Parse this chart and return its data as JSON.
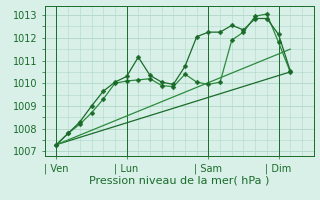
{
  "background_color": "#d8f0e8",
  "grid_color": "#b0d8c8",
  "line_color_dark": "#1a6b2a",
  "line_color_mid": "#2d8a3e",
  "line_color_light": "#4aaa5a",
  "ylim": [
    1006.8,
    1013.4
  ],
  "yticks": [
    1007,
    1008,
    1009,
    1010,
    1011,
    1012,
    1013
  ],
  "xlabel": "Pression niveau de la mer( hPa )",
  "xlabel_fontsize": 8,
  "tick_fontsize": 7,
  "xtick_labels": [
    "| Ven",
    "| Lun",
    "| Sam",
    "| Dim"
  ],
  "xtick_positions": [
    0.5,
    3.5,
    7.0,
    10.0
  ],
  "xlim": [
    0,
    11.5
  ],
  "series1_x": [
    0.5,
    1.0,
    1.5,
    2.0,
    2.5,
    3.0,
    3.5,
    4.0,
    4.5,
    5.0,
    5.5,
    6.0,
    6.5,
    7.0,
    7.5,
    8.0,
    8.5,
    9.0,
    9.5,
    10.0,
    10.5
  ],
  "series1_y": [
    1007.3,
    1007.8,
    1008.2,
    1008.7,
    1009.3,
    1010.0,
    1010.1,
    1010.15,
    1010.2,
    1009.9,
    1009.85,
    1010.4,
    1010.05,
    1009.95,
    1010.05,
    1011.9,
    1012.25,
    1012.95,
    1013.05,
    1011.8,
    1010.5
  ],
  "series2_x": [
    0.5,
    1.0,
    1.5,
    2.0,
    2.5,
    3.0,
    3.5,
    4.0,
    4.5,
    5.0,
    5.5,
    6.0,
    6.5,
    7.0,
    7.5,
    8.0,
    8.5,
    9.0,
    9.5,
    10.0,
    10.5
  ],
  "series2_y": [
    1007.3,
    1007.8,
    1008.3,
    1009.0,
    1009.65,
    1010.05,
    1010.3,
    1011.15,
    1010.35,
    1010.05,
    1009.95,
    1010.75,
    1012.05,
    1012.25,
    1012.25,
    1012.55,
    1012.35,
    1012.85,
    1012.85,
    1012.15,
    1010.55
  ],
  "trend1_x": [
    0.5,
    10.5
  ],
  "trend1_y": [
    1007.3,
    1010.5
  ],
  "trend2_x": [
    0.5,
    10.5
  ],
  "trend2_y": [
    1007.3,
    1011.5
  ],
  "marker_size": 2.5
}
